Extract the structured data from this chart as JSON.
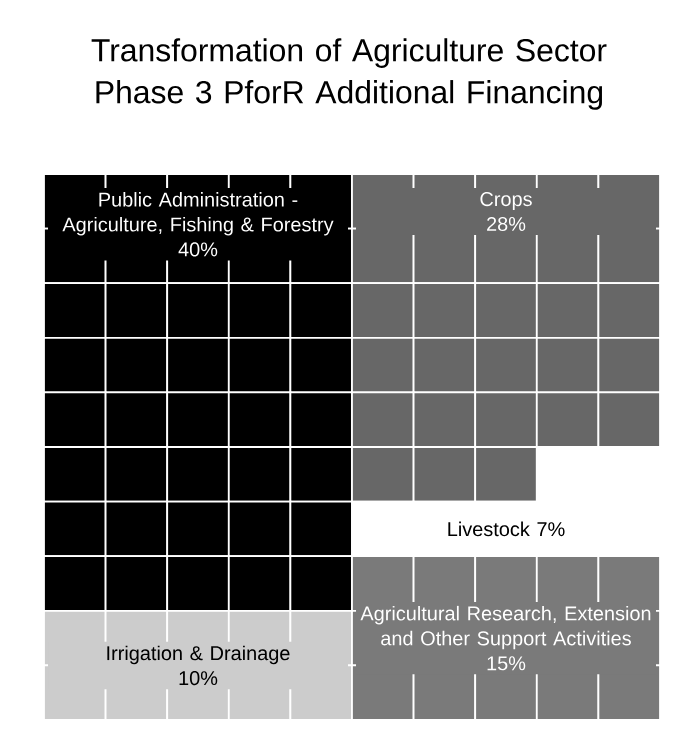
{
  "chart_data": {
    "type": "other",
    "title": "Transformation of Agriculture Sector Phase 3 PforR Additional Financing",
    "categories": [
      "Public Administration - Agriculture, Fishing & Forestry",
      "Irrigation & Drainage",
      "Crops",
      "Livestock",
      "Agricultural Research, Extension and Other Support Activities"
    ],
    "values": [
      40,
      10,
      28,
      7,
      15
    ],
    "value_labels": [
      "40%",
      "10%",
      "28%",
      "7%",
      "15%"
    ],
    "colors": [
      "#000000",
      "#cccccc",
      "#676767",
      "#ffffff",
      "#7a7a7a"
    ]
  }
}
